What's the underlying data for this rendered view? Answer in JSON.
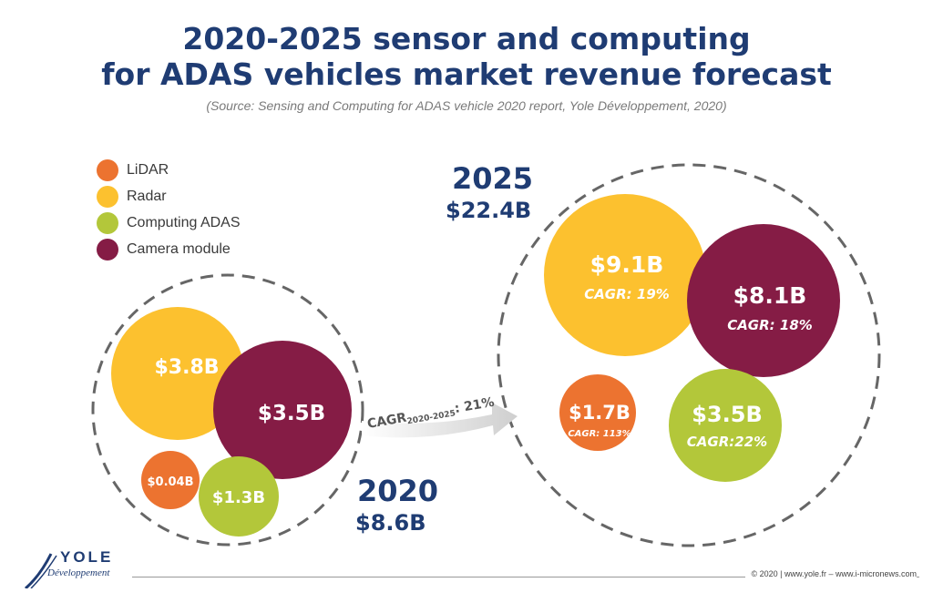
{
  "header": {
    "title_line1": "2020-2025 sensor and computing",
    "title_line2": "for ADAS vehicles market revenue forecast",
    "source": "(Source: Sensing and Computing for ADAS vehicle 2020 report, Yole Développement, 2020)"
  },
  "legend": [
    {
      "label": "LiDAR",
      "color": "#ec7330"
    },
    {
      "label": "Radar",
      "color": "#fcc12f"
    },
    {
      "label": "Computing ADAS",
      "color": "#b3c73a"
    },
    {
      "label": "Camera module",
      "color": "#851c45"
    }
  ],
  "chart_data": {
    "type": "bubble",
    "groups": [
      {
        "year": "2020",
        "total": "$8.6B",
        "bubbles": [
          {
            "segment": "Radar",
            "value": 3.8,
            "label": "$3.8B"
          },
          {
            "segment": "Camera module",
            "value": 3.5,
            "label": "$3.5B"
          },
          {
            "segment": "LiDAR",
            "value": 0.04,
            "label": "$0.04B"
          },
          {
            "segment": "Computing ADAS",
            "value": 1.3,
            "label": "$1.3B"
          }
        ]
      },
      {
        "year": "2025",
        "total": "$22.4B",
        "bubbles": [
          {
            "segment": "Radar",
            "value": 9.1,
            "label": "$9.1B",
            "cagr": "CAGR: 19%"
          },
          {
            "segment": "Camera module",
            "value": 8.1,
            "label": "$8.1B",
            "cagr": "CAGR: 18%"
          },
          {
            "segment": "LiDAR",
            "value": 1.7,
            "label": "$1.7B",
            "cagr": "CAGR: 113%"
          },
          {
            "segment": "Computing ADAS",
            "value": 3.5,
            "label": "$3.5B",
            "cagr": "CAGR:22%"
          }
        ]
      }
    ],
    "overall_cagr": {
      "prefix": "CAGR",
      "subscript": "2020-2025",
      "suffix": ": 21%"
    }
  },
  "footer": {
    "logo_name": "YOLE",
    "logo_sub": "Développement",
    "copyright": "© 2020 | www.yole.fr – www.i-micronews.com"
  }
}
